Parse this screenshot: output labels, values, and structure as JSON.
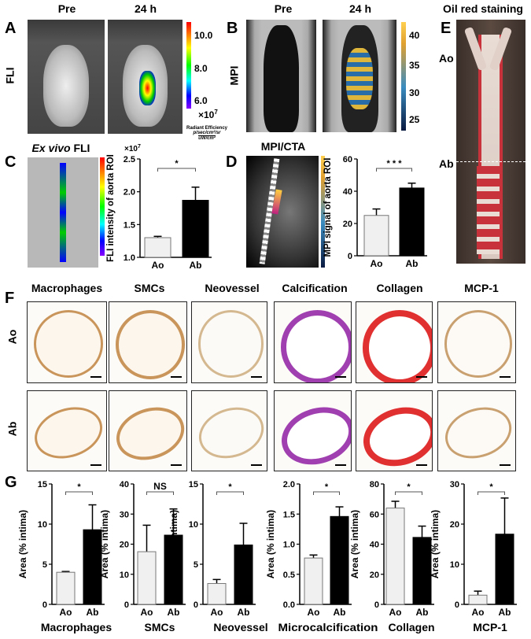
{
  "panels": {
    "A": {
      "label": "A",
      "row_label": "FLI",
      "cols": [
        "Pre",
        "24 h"
      ],
      "colorbar": {
        "ticks": [
          "10.0",
          "8.0",
          "6.0"
        ],
        "multiplier": "×10",
        "exp": "7",
        "unit_title": "Radiant Efficiency",
        "unit_num": "p/sec/cm²/sr",
        "unit_den": "uW/cm²"
      }
    },
    "B": {
      "label": "B",
      "row_label": "MPI",
      "cols": [
        "Pre",
        "24 h"
      ],
      "colorbar": {
        "ticks": [
          "40",
          "35",
          "30",
          "25"
        ]
      }
    },
    "C": {
      "label": "C",
      "title_italic": "Ex vivo",
      "title_rest": " FLI"
    },
    "D": {
      "label": "D",
      "title": "MPI/CTA"
    },
    "E": {
      "label": "E",
      "title": "Oil red staining",
      "marks": [
        "Ao",
        "Ab"
      ]
    },
    "F": {
      "label": "F",
      "columns": [
        "Macrophages",
        "SMCs",
        "Neovessel",
        "Calcification",
        "Collagen",
        "MCP-1"
      ],
      "rows": [
        "Ao",
        "Ab"
      ]
    },
    "G": {
      "label": "G"
    }
  },
  "colors": {
    "ao_bar": "#f0f0f0",
    "ab_bar": "#000000",
    "oil_red": "#c8323a",
    "hist_brown": "#c9955a",
    "hist_purple": "#a040b0",
    "hist_red": "#e03030"
  },
  "chart_data": [
    {
      "id": "C",
      "type": "bar",
      "categories": [
        "Ao",
        "Ab"
      ],
      "values": [
        1.3,
        1.87
      ],
      "errors": [
        0.02,
        0.2
      ],
      "ylabel": "FLI intensity of aorta ROI",
      "ylim": [
        1.0,
        2.5
      ],
      "ticks": [
        "1.0",
        "1.5",
        "2.0",
        "2.5"
      ],
      "multiplier": "×10",
      "exp": "7",
      "sig": "*",
      "title": ""
    },
    {
      "id": "D",
      "type": "bar",
      "categories": [
        "Ao",
        "Ab"
      ],
      "values": [
        25,
        42
      ],
      "errors": [
        4,
        3
      ],
      "ylabel": "MPI signal of aorta ROI",
      "ylim": [
        0,
        60
      ],
      "ticks": [
        "0",
        "20",
        "40",
        "60"
      ],
      "sig": "* * *",
      "title": ""
    },
    {
      "id": "G1",
      "type": "bar",
      "categories": [
        "Ao",
        "Ab"
      ],
      "values": [
        4.0,
        9.3
      ],
      "errors": [
        0.1,
        3.1
      ],
      "ylabel": "Area (% intima)",
      "ylim": [
        0,
        15
      ],
      "ticks": [
        "0",
        "5",
        "10",
        "15"
      ],
      "sig": "*",
      "title": "Macrophages"
    },
    {
      "id": "G2",
      "type": "bar",
      "categories": [
        "Ao",
        "Ab"
      ],
      "values": [
        17.5,
        23
      ],
      "errors": [
        8.8,
        8.7
      ],
      "ylabel": "Area (% intima)",
      "ylim": [
        0,
        40
      ],
      "ticks": [
        "0",
        "10",
        "20",
        "30",
        "40"
      ],
      "sig": "NS",
      "title": "SMCs"
    },
    {
      "id": "G3",
      "type": "bar",
      "categories": [
        "Ao",
        "Ab"
      ],
      "values": [
        2.6,
        7.4
      ],
      "errors": [
        0.5,
        2.7
      ],
      "ylabel": "Area (% intima)",
      "ylim": [
        0,
        15
      ],
      "ticks": [
        "0",
        "5",
        "10",
        "15"
      ],
      "sig": "*",
      "title": "Neovessel"
    },
    {
      "id": "G4",
      "type": "bar",
      "categories": [
        "Ao",
        "Ab"
      ],
      "values": [
        0.77,
        1.46
      ],
      "errors": [
        0.05,
        0.16
      ],
      "ylabel": "Area (% intima)",
      "ylim": [
        0,
        2
      ],
      "ticks": [
        "0.0",
        "0.5",
        "1.0",
        "1.5",
        "2.0"
      ],
      "sig": "*",
      "title": "Microcalcification"
    },
    {
      "id": "G5",
      "type": "bar",
      "categories": [
        "Ao",
        "Ab"
      ],
      "values": [
        64,
        44.5
      ],
      "errors": [
        4.5,
        7.5
      ],
      "ylabel": "Area (% intima)",
      "ylim": [
        0,
        80
      ],
      "ticks": [
        "0",
        "20",
        "40",
        "60",
        "80"
      ],
      "sig": "*",
      "title": "Collagen"
    },
    {
      "id": "G6",
      "type": "bar",
      "categories": [
        "Ao",
        "Ab"
      ],
      "values": [
        2.3,
        17.5
      ],
      "errors": [
        1.0,
        9.0
      ],
      "ylabel": "Area (% intima)",
      "ylim": [
        0,
        30
      ],
      "ticks": [
        "0",
        "10",
        "20",
        "30"
      ],
      "sig": "*",
      "title": "MCP-1"
    }
  ]
}
